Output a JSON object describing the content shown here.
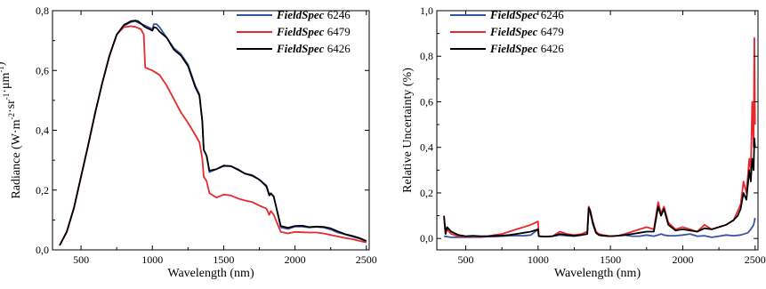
{
  "chart_data": [
    {
      "type": "line",
      "ylabel_parts": [
        "Radiance (W",
        "·",
        "m",
        "-2",
        "·",
        "sr",
        "-1",
        "·",
        "μm",
        "-1",
        ")"
      ],
      "xlabel": "Wavelength (nm)",
      "xlim": [
        300,
        2520
      ],
      "ylim": [
        0.0,
        0.8
      ],
      "xticks": [
        500,
        1000,
        1500,
        2000,
        2500
      ],
      "xtick_labels": [
        "500",
        "1000",
        "1500",
        "2000",
        "2500"
      ],
      "yticks": [
        0.0,
        0.2,
        0.4,
        0.6,
        0.8
      ],
      "ytick_labels": [
        "0,0",
        "0,2",
        "0,4",
        "0,6",
        "0,8"
      ],
      "legend": "top-right",
      "series": [
        {
          "name_italic": "FieldSpec",
          "name_rest": " 6246",
          "color": "#3953a4",
          "x": [
            350,
            400,
            450,
            500,
            550,
            600,
            650,
            700,
            750,
            800,
            850,
            880,
            900,
            950,
            1000,
            1010,
            1030,
            1050,
            1100,
            1150,
            1200,
            1250,
            1300,
            1330,
            1350,
            1360,
            1380,
            1400,
            1450,
            1500,
            1550,
            1600,
            1650,
            1700,
            1750,
            1800,
            1820,
            1830,
            1850,
            1900,
            1950,
            2000,
            2050,
            2100,
            2150,
            2200,
            2250,
            2300,
            2350,
            2400,
            2450,
            2500
          ],
          "y": [
            0.015,
            0.06,
            0.14,
            0.245,
            0.35,
            0.46,
            0.56,
            0.65,
            0.72,
            0.75,
            0.762,
            0.765,
            0.76,
            0.75,
            0.738,
            0.755,
            0.755,
            0.745,
            0.71,
            0.675,
            0.655,
            0.62,
            0.55,
            0.52,
            0.43,
            0.335,
            0.315,
            0.26,
            0.27,
            0.28,
            0.28,
            0.27,
            0.255,
            0.25,
            0.235,
            0.215,
            0.185,
            0.19,
            0.18,
            0.075,
            0.07,
            0.078,
            0.078,
            0.075,
            0.077,
            0.075,
            0.068,
            0.058,
            0.052,
            0.045,
            0.038,
            0.028
          ]
        },
        {
          "name_italic": "FieldSpec",
          "name_rest": " 6479",
          "color": "#e8282e",
          "x": [
            350,
            400,
            450,
            500,
            550,
            600,
            650,
            700,
            750,
            800,
            850,
            880,
            900,
            920,
            940,
            950,
            1000,
            1050,
            1100,
            1150,
            1200,
            1250,
            1300,
            1330,
            1350,
            1360,
            1380,
            1400,
            1450,
            1500,
            1550,
            1600,
            1650,
            1700,
            1750,
            1800,
            1820,
            1830,
            1850,
            1900,
            1950,
            2000,
            2050,
            2100,
            2150,
            2200,
            2250,
            2300,
            2350,
            2400,
            2450,
            2500
          ],
          "y": [
            0.015,
            0.06,
            0.14,
            0.245,
            0.35,
            0.46,
            0.56,
            0.65,
            0.72,
            0.745,
            0.748,
            0.746,
            0.742,
            0.738,
            0.72,
            0.61,
            0.6,
            0.585,
            0.55,
            0.505,
            0.46,
            0.425,
            0.385,
            0.36,
            0.305,
            0.245,
            0.23,
            0.19,
            0.175,
            0.185,
            0.182,
            0.172,
            0.165,
            0.16,
            0.148,
            0.138,
            0.117,
            0.13,
            0.118,
            0.06,
            0.055,
            0.06,
            0.059,
            0.058,
            0.058,
            0.055,
            0.05,
            0.045,
            0.04,
            0.036,
            0.03,
            0.025
          ]
        },
        {
          "name_italic": "FieldSpec",
          "name_rest": " 6426",
          "color": "#000000",
          "x": [
            350,
            400,
            450,
            500,
            550,
            600,
            650,
            700,
            750,
            800,
            850,
            880,
            900,
            950,
            1000,
            1010,
            1030,
            1050,
            1100,
            1150,
            1200,
            1250,
            1300,
            1330,
            1350,
            1360,
            1380,
            1400,
            1450,
            1500,
            1550,
            1600,
            1650,
            1700,
            1750,
            1800,
            1820,
            1830,
            1850,
            1900,
            1950,
            2000,
            2050,
            2100,
            2150,
            2200,
            2250,
            2300,
            2350,
            2400,
            2450,
            2500
          ],
          "y": [
            0.015,
            0.06,
            0.14,
            0.245,
            0.35,
            0.46,
            0.56,
            0.65,
            0.72,
            0.752,
            0.765,
            0.767,
            0.765,
            0.745,
            0.733,
            0.745,
            0.742,
            0.73,
            0.71,
            0.67,
            0.65,
            0.615,
            0.545,
            0.515,
            0.43,
            0.335,
            0.315,
            0.265,
            0.27,
            0.282,
            0.28,
            0.268,
            0.255,
            0.248,
            0.235,
            0.212,
            0.182,
            0.188,
            0.178,
            0.08,
            0.074,
            0.08,
            0.081,
            0.076,
            0.078,
            0.077,
            0.072,
            0.062,
            0.053,
            0.047,
            0.04,
            0.03
          ]
        }
      ]
    },
    {
      "type": "line",
      "ylabel": "Relative Uncertainty (%)",
      "xlabel": "Wavelength (nm)",
      "xlim": [
        300,
        2520
      ],
      "ylim": [
        -0.05,
        1.0
      ],
      "xticks": [
        500,
        1000,
        1500,
        2000,
        2500
      ],
      "xtick_labels": [
        "500",
        "1000",
        "1500",
        "2000",
        "2500"
      ],
      "yticks": [
        0.0,
        0.2,
        0.4,
        0.6,
        0.8,
        1.0
      ],
      "ytick_labels": [
        "0,0",
        "0,2",
        "0,4",
        "0,6",
        "0,8",
        "1,0"
      ],
      "legend": "top-left",
      "series": [
        {
          "name_italic": "FieldSpec",
          "name_rest": " 6246",
          "color": "#3953a4",
          "x": [
            350,
            400,
            450,
            500,
            550,
            600,
            650,
            700,
            750,
            800,
            850,
            900,
            950,
            1000,
            1005,
            1050,
            1100,
            1150,
            1200,
            1250,
            1300,
            1340,
            1350,
            1360,
            1380,
            1400,
            1420,
            1450,
            1500,
            1550,
            1600,
            1650,
            1700,
            1750,
            1800,
            1830,
            1850,
            1870,
            1900,
            1950,
            2000,
            2050,
            2100,
            2150,
            2200,
            2250,
            2300,
            2350,
            2400,
            2450,
            2470,
            2490,
            2500
          ],
          "y": [
            0.01,
            0.005,
            0.006,
            0.005,
            0.006,
            0.006,
            0.008,
            0.008,
            0.01,
            0.012,
            0.013,
            0.012,
            0.015,
            0.04,
            0.01,
            0.008,
            0.01,
            0.015,
            0.012,
            0.01,
            0.015,
            0.02,
            0.12,
            0.115,
            0.06,
            0.025,
            0.015,
            0.012,
            0.01,
            0.012,
            0.015,
            0.01,
            0.01,
            0.015,
            0.01,
            0.015,
            0.02,
            0.015,
            0.012,
            0.012,
            0.015,
            0.02,
            0.01,
            0.012,
            0.005,
            0.01,
            0.015,
            0.012,
            0.015,
            0.025,
            0.04,
            0.06,
            0.09
          ]
        },
        {
          "name_italic": "FieldSpec",
          "name_rest": " 6479",
          "color": "#e8282e",
          "x": [
            350,
            360,
            370,
            400,
            450,
            500,
            550,
            600,
            650,
            700,
            750,
            800,
            850,
            900,
            950,
            1000,
            1005,
            1050,
            1100,
            1150,
            1200,
            1250,
            1300,
            1340,
            1350,
            1360,
            1380,
            1400,
            1420,
            1450,
            1500,
            1550,
            1600,
            1650,
            1700,
            1750,
            1800,
            1830,
            1850,
            1870,
            1900,
            1950,
            2000,
            2050,
            2100,
            2150,
            2200,
            2250,
            2300,
            2350,
            2380,
            2400,
            2420,
            2440,
            2460,
            2470,
            2480,
            2490,
            2495,
            2500
          ],
          "y": [
            0.09,
            0.02,
            0.04,
            0.02,
            0.01,
            0.008,
            0.01,
            0.008,
            0.01,
            0.015,
            0.02,
            0.03,
            0.04,
            0.05,
            0.06,
            0.075,
            0.01,
            0.008,
            0.01,
            0.03,
            0.02,
            0.015,
            0.02,
            0.03,
            0.14,
            0.125,
            0.07,
            0.03,
            0.02,
            0.015,
            0.01,
            0.012,
            0.02,
            0.03,
            0.04,
            0.05,
            0.04,
            0.16,
            0.11,
            0.14,
            0.07,
            0.04,
            0.05,
            0.04,
            0.03,
            0.06,
            0.04,
            0.05,
            0.06,
            0.08,
            0.12,
            0.15,
            0.25,
            0.2,
            0.35,
            0.3,
            0.6,
            0.4,
            0.88,
            0.5
          ]
        },
        {
          "name_italic": "FieldSpec",
          "name_rest": " 6426",
          "color": "#000000",
          "x": [
            350,
            360,
            370,
            400,
            450,
            500,
            550,
            600,
            650,
            700,
            750,
            800,
            850,
            900,
            950,
            1000,
            1005,
            1050,
            1100,
            1150,
            1200,
            1250,
            1300,
            1340,
            1350,
            1360,
            1380,
            1400,
            1420,
            1450,
            1500,
            1550,
            1600,
            1650,
            1700,
            1750,
            1800,
            1830,
            1850,
            1870,
            1900,
            1950,
            2000,
            2050,
            2100,
            2150,
            2200,
            2250,
            2300,
            2350,
            2380,
            2400,
            2420,
            2440,
            2460,
            2470,
            2480,
            2490,
            2495,
            2500
          ],
          "y": [
            0.1,
            0.02,
            0.05,
            0.03,
            0.015,
            0.01,
            0.012,
            0.01,
            0.01,
            0.012,
            0.013,
            0.015,
            0.02,
            0.025,
            0.03,
            0.04,
            0.01,
            0.008,
            0.01,
            0.02,
            0.015,
            0.012,
            0.015,
            0.02,
            0.135,
            0.12,
            0.065,
            0.025,
            0.015,
            0.012,
            0.01,
            0.012,
            0.015,
            0.02,
            0.025,
            0.03,
            0.03,
            0.14,
            0.1,
            0.13,
            0.06,
            0.035,
            0.04,
            0.035,
            0.03,
            0.045,
            0.04,
            0.05,
            0.06,
            0.08,
            0.1,
            0.13,
            0.2,
            0.17,
            0.3,
            0.25,
            0.35,
            0.3,
            0.44,
            0.4
          ]
        }
      ]
    }
  ]
}
